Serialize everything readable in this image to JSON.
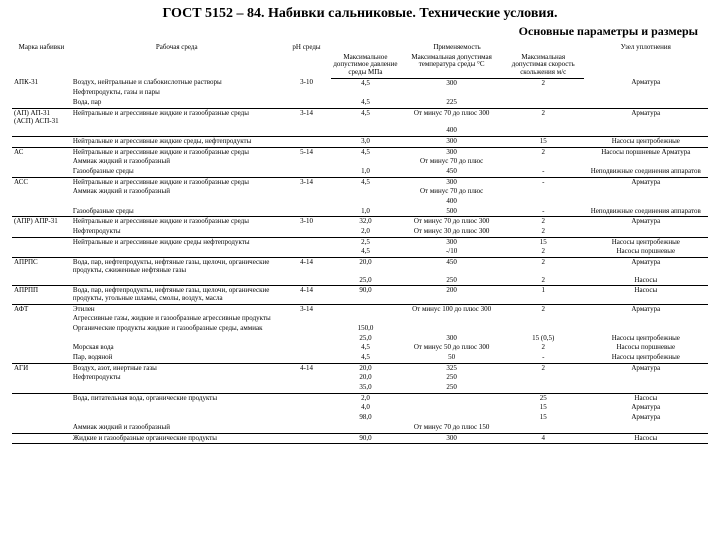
{
  "title": "ГОСТ 5152 – 84. Набивки сальниковые. Технические условия.",
  "subtitle": "Основные параметры и размеры",
  "headers": {
    "c0": "Марка набивки",
    "c1": "Рабочая среда",
    "c2": "pH среды",
    "appl": "Применяемость",
    "c3": "Максимальное допустимое давление среды МПа",
    "c4": "Максимальная допустимая температура среды °C",
    "c5": "Максимальная допустимая скорость скольжения м/с",
    "c6": "Узел уплотнения"
  },
  "rows": [
    {
      "c0": "АПК-31",
      "c1": "Воздух, нейтральные и слабокислотные растворы",
      "c2": "3-10",
      "c3": "4,5",
      "c4": "300",
      "c5": "2",
      "c6": "Арматура",
      "sep": false
    },
    {
      "c0": "",
      "c1": "Нефтепродукты, газы и пары",
      "c2": "",
      "c3": "",
      "c4": "",
      "c5": "",
      "c6": "",
      "sep": false
    },
    {
      "c0": "",
      "c1": "Вода, пар",
      "c2": "",
      "c3": "4,5",
      "c4": "225",
      "c5": "",
      "c6": "",
      "sep": true
    },
    {
      "c0": "(АП) АП-31 (АСП) АСП-31",
      "c1": "Нейтральные и агрессивные жидкие и газообразные среды",
      "c2": "3-14",
      "c3": "4,5",
      "c4": "От минус 70 до плюс 300",
      "c5": "2",
      "c6": "Арматура",
      "sep": false
    },
    {
      "c0": "",
      "c1": "",
      "c2": "",
      "c3": "",
      "c4": "400",
      "c5": "",
      "c6": "",
      "sep": true
    },
    {
      "c0": "",
      "c1": "Нейтральные и агрессивные жидкие среды, нефтепродукты",
      "c2": "",
      "c3": "3,0",
      "c4": "300",
      "c5": "15",
      "c6": "Насосы центробежные",
      "sep": true
    },
    {
      "c0": "АС",
      "c1": "Нейтральные и агрессивные жидкие и газообразные среды",
      "c2": "5-14",
      "c3": "4,5",
      "c4": "300",
      "c5": "2",
      "c6": "Насосы поршневые Арматура",
      "sep": false
    },
    {
      "c0": "",
      "c1": "Аммиак жидкий и газообразный",
      "c2": "",
      "c3": "",
      "c4": "От минус 70 до плюс",
      "c5": "",
      "c6": "",
      "sep": false
    },
    {
      "c0": "",
      "c1": "Газообразные среды",
      "c2": "",
      "c3": "1,0",
      "c4": "450",
      "c5": "-",
      "c6": "Неподвижные соединения аппаратов",
      "sep": true
    },
    {
      "c0": "АСС",
      "c1": "Нейтральные и агрессивные жидкие и газообразные среды",
      "c2": "3-14",
      "c3": "4,5",
      "c4": "300",
      "c5": "-",
      "c6": "Арматура",
      "sep": false
    },
    {
      "c0": "",
      "c1": "Аммиак жидкий и газообразный",
      "c2": "",
      "c3": "",
      "c4": "От минус 70 до плюс",
      "c5": "",
      "c6": "",
      "sep": false
    },
    {
      "c0": "",
      "c1": "",
      "c2": "",
      "c3": "",
      "c4": "400",
      "c5": "",
      "c6": "",
      "sep": false
    },
    {
      "c0": "",
      "c1": "Газообразные среды",
      "c2": "",
      "c3": "1,0",
      "c4": "500",
      "c5": "-",
      "c6": "Неподвижные соединения аппаратов",
      "sep": true
    },
    {
      "c0": "(АПР) АПР-31",
      "c1": "Нейтральные и агрессивные жидкие и газообразные среды",
      "c2": "3-10",
      "c3": "32,0",
      "c4": "От минус 70 до плюс 300",
      "c5": "2",
      "c6": "Арматура",
      "sep": false
    },
    {
      "c0": "",
      "c1": "Нефтепродукты",
      "c2": "",
      "c3": "2,0",
      "c4": "От минус 30 до плюс 300",
      "c5": "2",
      "c6": "",
      "sep": true
    },
    {
      "c0": "",
      "c1": "Нейтральные и агрессивные жидкие среды нефтепродукты",
      "c2": "",
      "c3": "2,5",
      "c4": "300",
      "c5": "15",
      "c6": "Насосы центробежные",
      "sep": false
    },
    {
      "c0": "",
      "c1": "",
      "c2": "",
      "c3": "4,5",
      "c4": "-/10",
      "c5": "2",
      "c6": "Насосы поршневые",
      "sep": true
    },
    {
      "c0": "АПРПС",
      "c1": "Вода, пар, нефтепродукты, нефтяные газы, щелочи, органические продукты, сжиженные нефтяные газы",
      "c2": "4-14",
      "c3": "20,0",
      "c4": "450",
      "c5": "2",
      "c6": "Арматура",
      "sep": false
    },
    {
      "c0": "",
      "c1": "",
      "c2": "",
      "c3": "25,0",
      "c4": "250",
      "c5": "2",
      "c6": "Насосы",
      "sep": true
    },
    {
      "c0": "АПРПП",
      "c1": "Вода, пар, нефтепродукты, нефтяные газы, щелочи, органические продукты, угольные шламы, смолы, воздух, масла",
      "c2": "4-14",
      "c3": "90,0",
      "c4": "200",
      "c5": "1",
      "c6": "Насосы",
      "sep": true
    },
    {
      "c0": "АФТ",
      "c1": "Этилен",
      "c2": "3-14",
      "c3": "",
      "c4": "От минус 100 до плюс 300",
      "c5": "2",
      "c6": "Арматура",
      "sep": false
    },
    {
      "c0": "",
      "c1": "Агрессивные газы, жидкие и газообразные агрессивные продукты",
      "c2": "",
      "c3": "",
      "c4": "",
      "c5": "",
      "c6": "",
      "sep": false
    },
    {
      "c0": "",
      "c1": "Органические продукты жидкие и газообразные среды, аммиак",
      "c2": "",
      "c3": "150,0",
      "c4": "",
      "c5": "",
      "c6": "",
      "sep": false
    },
    {
      "c0": "",
      "c1": "",
      "c2": "",
      "c3": "25,0",
      "c4": "300",
      "c5": "15 (0,5)",
      "c6": "Насосы центробежные",
      "sep": false
    },
    {
      "c0": "",
      "c1": "Морская вода",
      "c2": "",
      "c3": "4,5",
      "c4": "От минус 50 до плюс 300",
      "c5": "2",
      "c6": "Насосы поршневые",
      "sep": false
    },
    {
      "c0": "",
      "c1": "Пар, водяной",
      "c2": "",
      "c3": "4,5",
      "c4": "50",
      "c5": "-",
      "c6": "Насосы центробежные",
      "sep": true
    },
    {
      "c0": "АГИ",
      "c1": "Воздух, азот, инертные газы",
      "c2": "4-14",
      "c3": "20,0",
      "c4": "325",
      "c5": "2",
      "c6": "Арматура",
      "sep": false
    },
    {
      "c0": "",
      "c1": "Нефтепродукты",
      "c2": "",
      "c3": "20,0",
      "c4": "250",
      "c5": "",
      "c6": "",
      "sep": false
    },
    {
      "c0": "",
      "c1": "",
      "c2": "",
      "c3": "35,0",
      "c4": "250",
      "c5": "",
      "c6": "",
      "sep": true
    },
    {
      "c0": "",
      "c1": "Вода, питательная вода, органические продукты",
      "c2": "",
      "c3": "2,0",
      "c4": "",
      "c5": "25",
      "c6": "Насосы",
      "sep": false
    },
    {
      "c0": "",
      "c1": "",
      "c2": "",
      "c3": "4,0",
      "c4": "",
      "c5": "15",
      "c6": "Арматура",
      "sep": false
    },
    {
      "c0": "",
      "c1": "",
      "c2": "",
      "c3": "98,0",
      "c4": "",
      "c5": "15",
      "c6": "Арматура",
      "sep": false
    },
    {
      "c0": "",
      "c1": "Аммиак жидкий и газообразный",
      "c2": "",
      "c3": "",
      "c4": "От минус 70 до плюс 150",
      "c5": "",
      "c6": "",
      "sep": true
    },
    {
      "c0": "",
      "c1": "Жидкие и газообразные органические продукты",
      "c2": "",
      "c3": "90,0",
      "c4": "300",
      "c5": "4",
      "c6": "Насосы",
      "sep": true
    }
  ]
}
